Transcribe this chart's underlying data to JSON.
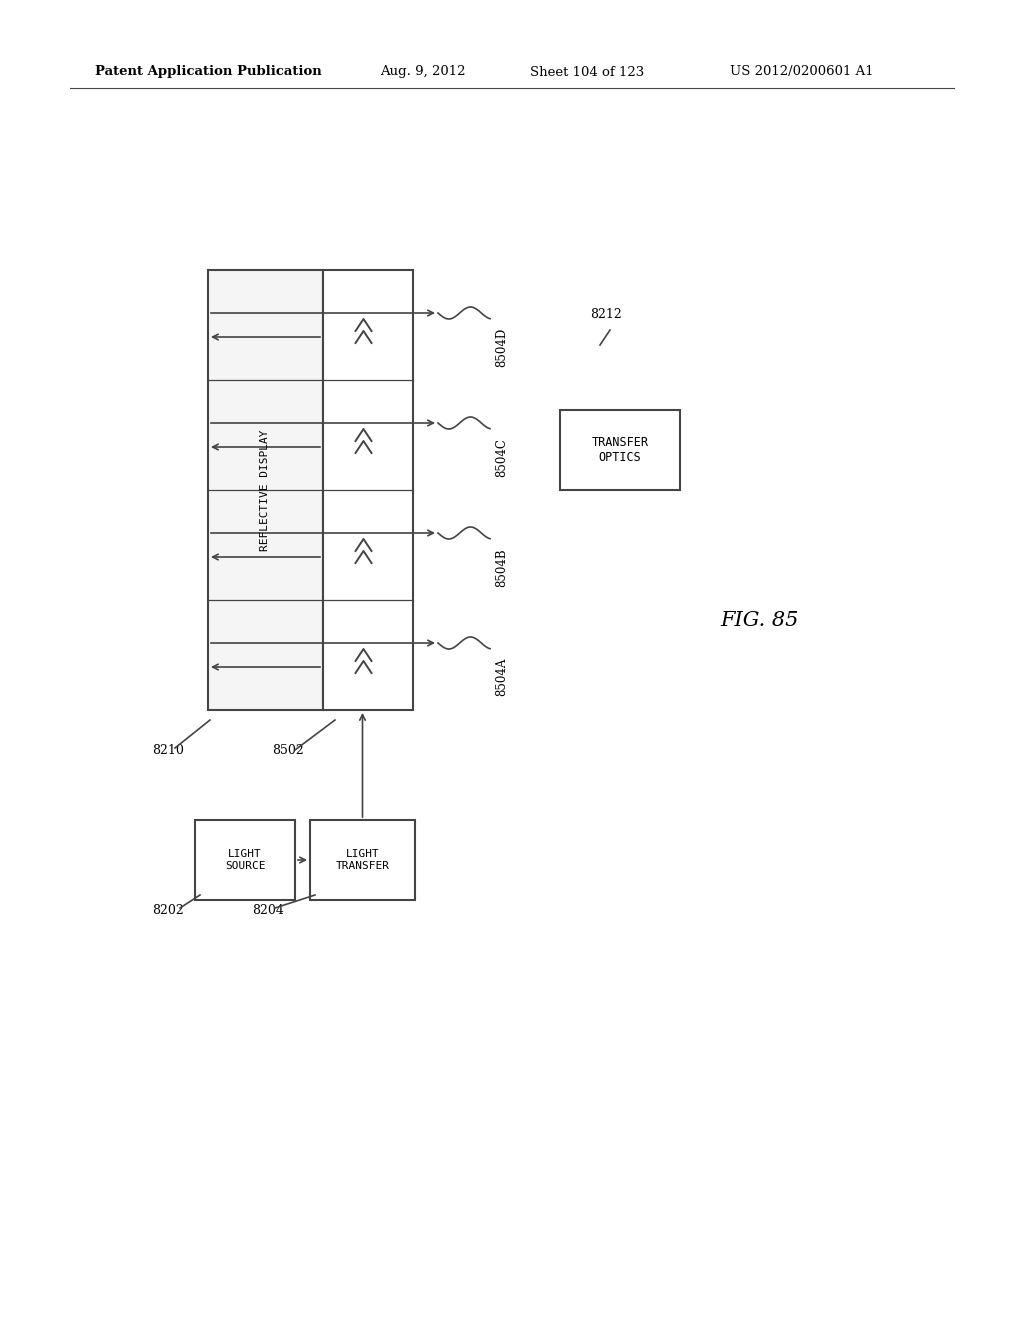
{
  "bg_color": "#ffffff",
  "header_text": "Patent Application Publication",
  "header_date": "Aug. 9, 2012",
  "header_sheet": "Sheet 104 of 123",
  "header_patent": "US 2012/0200601 A1",
  "fig_label": "FIG. 85",
  "line_color": "#444444",
  "box_edge_color": "#444444",
  "font_color": "#000000"
}
